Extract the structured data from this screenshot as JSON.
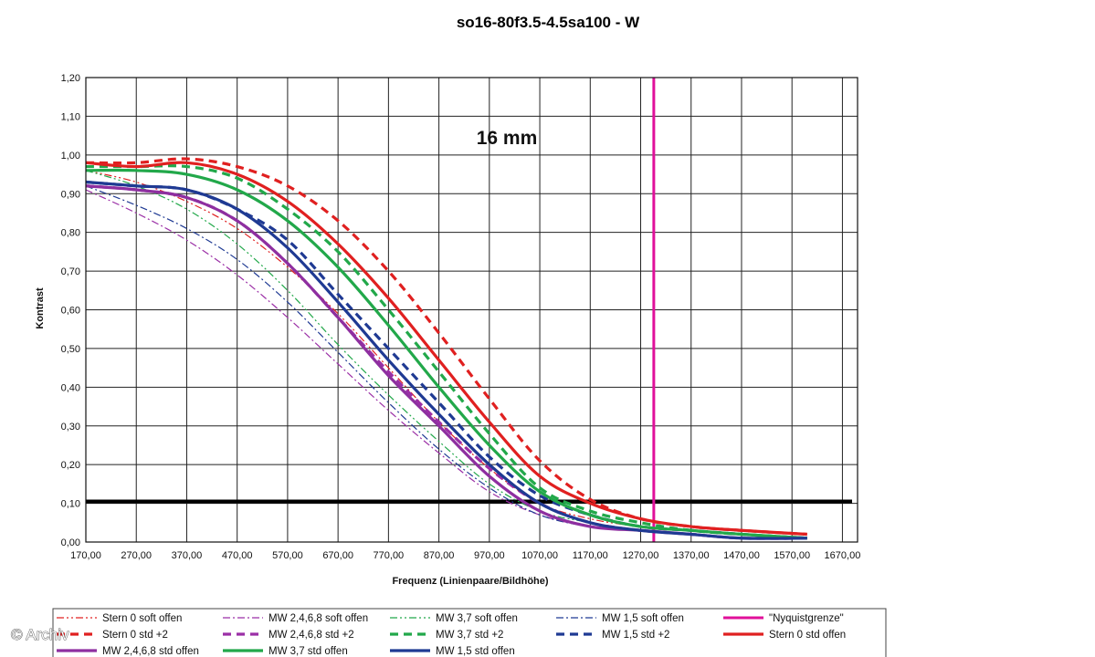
{
  "chart_data": {
    "type": "line",
    "title": "so16-80f3.5-4.5sa100 - W",
    "annotation": "16 mm",
    "xlabel": "Frequenz (Linienpaare/Bildhöhe)",
    "ylabel": "Kontrast",
    "xlim": [
      170,
      1700
    ],
    "ylim": [
      0,
      1.2
    ],
    "x_ticks": [
      "170,00",
      "270,00",
      "370,00",
      "470,00",
      "570,00",
      "670,00",
      "770,00",
      "870,00",
      "970,00",
      "1070,00",
      "1170,00",
      "1270,00",
      "1370,00",
      "1470,00",
      "1570,00",
      "1670,00"
    ],
    "y_ticks": [
      "0,00",
      "0,10",
      "0,20",
      "0,30",
      "0,40",
      "0,50",
      "0,60",
      "0,70",
      "0,80",
      "0,90",
      "1,00",
      "1,10",
      "1,20"
    ],
    "grid": true,
    "watermark": "© Archiv",
    "reference_lines": [
      {
        "name": "\"Nyquistgrenze\"",
        "orientation": "vertical",
        "value": 1296,
        "color": "#e0109a"
      },
      {
        "name": "Threshold",
        "orientation": "horizontal",
        "value": 0.105,
        "color": "#000000"
      }
    ],
    "series": [
      {
        "name": "Stern 0 soft offen",
        "color": "#e02020",
        "style": "dashdotdot",
        "width": 1.2,
        "x": [
          170,
          270,
          370,
          470,
          570,
          670,
          770,
          870,
          970,
          1070,
          1170,
          1270,
          1370,
          1470,
          1600
        ],
        "y": [
          0.96,
          0.93,
          0.88,
          0.81,
          0.71,
          0.59,
          0.45,
          0.31,
          0.19,
          0.1,
          0.06,
          0.04,
          0.03,
          0.02,
          0.01
        ]
      },
      {
        "name": "MW 2,4,6,8 soft offen",
        "color": "#9b2fa6",
        "style": "dashdot",
        "width": 1.2,
        "x": [
          170,
          270,
          370,
          470,
          570,
          670,
          770,
          870,
          970,
          1070,
          1170,
          1270,
          1370,
          1470,
          1600
        ],
        "y": [
          0.91,
          0.85,
          0.78,
          0.69,
          0.58,
          0.46,
          0.34,
          0.23,
          0.13,
          0.07,
          0.04,
          0.03,
          0.02,
          0.01,
          0.01
        ]
      },
      {
        "name": "MW 3,7 soft offen",
        "color": "#22a84a",
        "style": "dashdotdot",
        "width": 1.2,
        "x": [
          170,
          270,
          370,
          470,
          570,
          670,
          770,
          870,
          970,
          1070,
          1170,
          1270,
          1370,
          1470,
          1600
        ],
        "y": [
          0.96,
          0.92,
          0.86,
          0.77,
          0.65,
          0.51,
          0.38,
          0.26,
          0.15,
          0.08,
          0.05,
          0.03,
          0.02,
          0.01,
          0.01
        ]
      },
      {
        "name": "MW 1,5 soft offen",
        "color": "#1f3a93",
        "style": "dashdot",
        "width": 1.2,
        "x": [
          170,
          270,
          370,
          470,
          570,
          670,
          770,
          870,
          970,
          1070,
          1170,
          1270,
          1370,
          1470,
          1600
        ],
        "y": [
          0.92,
          0.87,
          0.81,
          0.73,
          0.62,
          0.49,
          0.36,
          0.24,
          0.14,
          0.07,
          0.04,
          0.03,
          0.02,
          0.01,
          0.01
        ]
      },
      {
        "name": "\"Nyquistgrenze\"",
        "color": "#e0109a",
        "style": "solid",
        "width": 3,
        "x": [
          1296,
          1296
        ],
        "y": [
          0,
          1.2
        ]
      },
      {
        "name": "Stern 0 std +2",
        "color": "#e02020",
        "style": "dash",
        "width": 3.2,
        "x": [
          170,
          270,
          370,
          470,
          570,
          670,
          770,
          870,
          970,
          1070,
          1170,
          1270,
          1370,
          1470,
          1600
        ],
        "y": [
          0.98,
          0.98,
          0.99,
          0.97,
          0.92,
          0.83,
          0.7,
          0.54,
          0.37,
          0.21,
          0.11,
          0.06,
          0.04,
          0.03,
          0.02
        ]
      },
      {
        "name": "MW 2,4,6,8 std +2",
        "color": "#9b2fa6",
        "style": "dash",
        "width": 3.2,
        "x": [
          170,
          270,
          370,
          470,
          570,
          670,
          770,
          870,
          970,
          1070,
          1170,
          1270,
          1370,
          1470,
          1600
        ],
        "y": [
          0.92,
          0.91,
          0.89,
          0.83,
          0.72,
          0.58,
          0.44,
          0.31,
          0.19,
          0.1,
          0.05,
          0.03,
          0.02,
          0.01,
          0.01
        ]
      },
      {
        "name": "MW 3,7 std +2",
        "color": "#22a84a",
        "style": "dash",
        "width": 3.2,
        "x": [
          170,
          270,
          370,
          470,
          570,
          670,
          770,
          870,
          970,
          1070,
          1170,
          1270,
          1370,
          1470,
          1600
        ],
        "y": [
          0.97,
          0.97,
          0.97,
          0.94,
          0.86,
          0.75,
          0.6,
          0.44,
          0.28,
          0.14,
          0.08,
          0.05,
          0.03,
          0.02,
          0.01
        ]
      },
      {
        "name": "MW 1,5 std +2",
        "color": "#1f3a93",
        "style": "dash",
        "width": 3.2,
        "x": [
          170,
          270,
          370,
          470,
          570,
          670,
          770,
          870,
          970,
          1070,
          1170,
          1270,
          1370,
          1470,
          1600
        ],
        "y": [
          0.93,
          0.92,
          0.91,
          0.86,
          0.78,
          0.64,
          0.5,
          0.36,
          0.22,
          0.12,
          0.07,
          0.04,
          0.03,
          0.02,
          0.01
        ]
      },
      {
        "name": "Stern 0 std offen",
        "color": "#e02020",
        "style": "solid",
        "width": 3.2,
        "x": [
          170,
          270,
          370,
          470,
          570,
          670,
          770,
          870,
          970,
          1070,
          1170,
          1270,
          1370,
          1470,
          1600
        ],
        "y": [
          0.98,
          0.97,
          0.98,
          0.95,
          0.88,
          0.77,
          0.63,
          0.47,
          0.31,
          0.17,
          0.1,
          0.06,
          0.04,
          0.03,
          0.02
        ]
      },
      {
        "name": "MW 2,4,6,8 std offen",
        "color": "#8e2fa0",
        "style": "solid",
        "width": 3.2,
        "x": [
          170,
          270,
          370,
          470,
          570,
          670,
          770,
          870,
          970,
          1070,
          1170,
          1270,
          1370,
          1470,
          1600
        ],
        "y": [
          0.92,
          0.91,
          0.89,
          0.83,
          0.72,
          0.58,
          0.43,
          0.3,
          0.17,
          0.08,
          0.04,
          0.03,
          0.02,
          0.01,
          0.01
        ]
      },
      {
        "name": "MW 3,7 std offen",
        "color": "#22a84a",
        "style": "solid",
        "width": 3.2,
        "x": [
          170,
          270,
          370,
          470,
          570,
          670,
          770,
          870,
          970,
          1070,
          1170,
          1270,
          1370,
          1470,
          1600
        ],
        "y": [
          0.96,
          0.96,
          0.95,
          0.91,
          0.83,
          0.71,
          0.56,
          0.4,
          0.25,
          0.13,
          0.07,
          0.04,
          0.03,
          0.02,
          0.01
        ]
      },
      {
        "name": "MW 1,5 std offen",
        "color": "#1f3a93",
        "style": "solid",
        "width": 3.2,
        "x": [
          170,
          270,
          370,
          470,
          570,
          670,
          770,
          870,
          970,
          1070,
          1170,
          1270,
          1370,
          1470,
          1600
        ],
        "y": [
          0.93,
          0.92,
          0.91,
          0.86,
          0.76,
          0.62,
          0.47,
          0.33,
          0.2,
          0.1,
          0.05,
          0.03,
          0.02,
          0.01,
          0.01
        ]
      }
    ]
  }
}
